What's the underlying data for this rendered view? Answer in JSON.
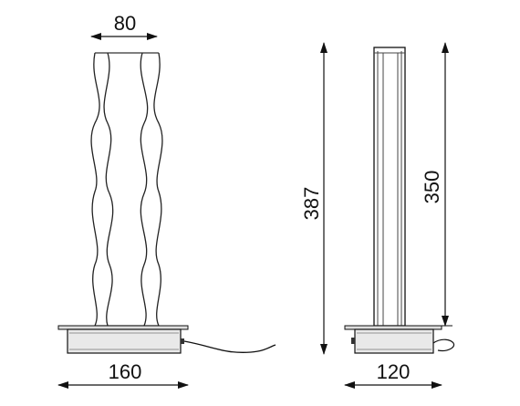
{
  "drawing": {
    "front_view": {
      "top_width_label": "80",
      "base_width_label": "160"
    },
    "side_view": {
      "overall_height_label": "387",
      "body_height_label": "350",
      "base_depth_label": "120"
    }
  },
  "colors": {
    "line": "#111111",
    "base_fill": "#e9e9e9",
    "background": "#ffffff"
  }
}
